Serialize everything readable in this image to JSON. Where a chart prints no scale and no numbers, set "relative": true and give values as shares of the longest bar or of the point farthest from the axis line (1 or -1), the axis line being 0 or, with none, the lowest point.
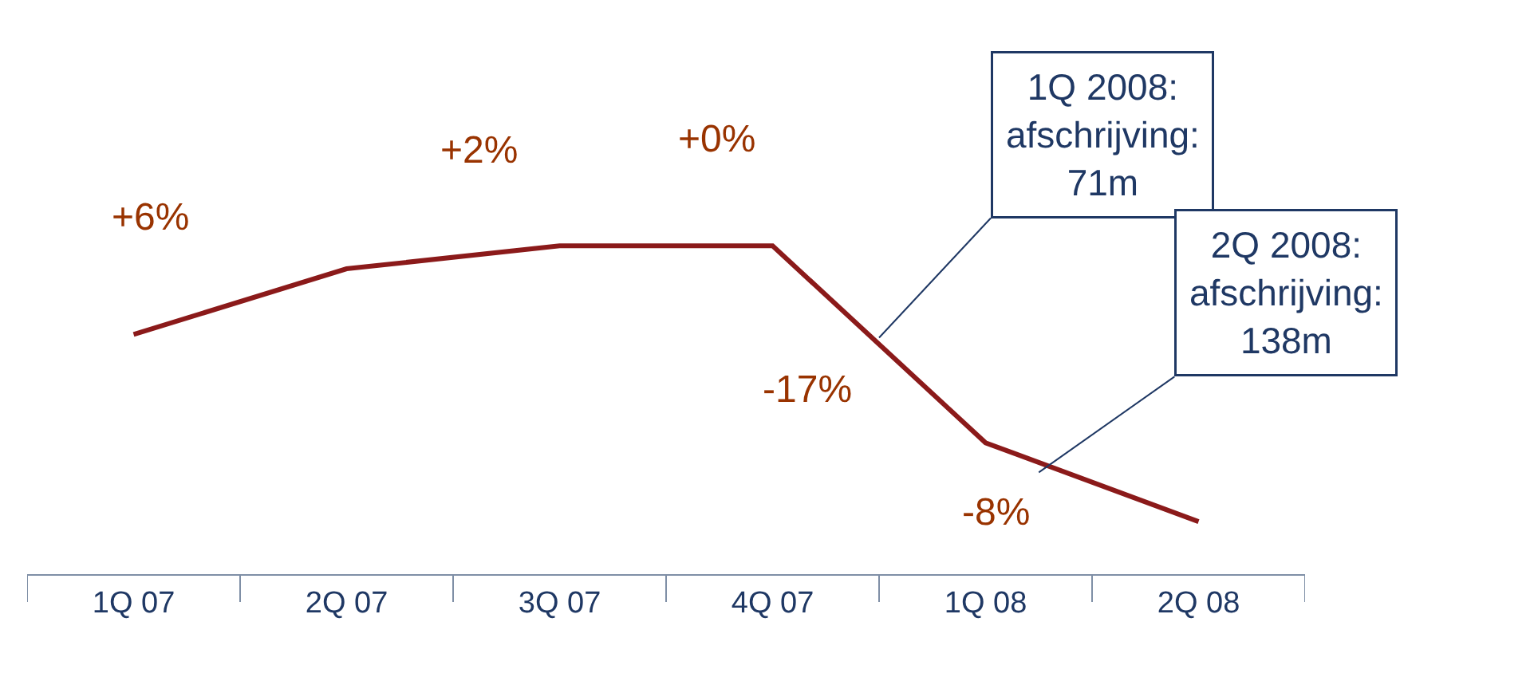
{
  "chart_data": {
    "type": "line",
    "relative": true,
    "categories": [
      "1Q 07",
      "2Q 07",
      "3Q 07",
      "4Q 07",
      "1Q 08",
      "2Q 08"
    ],
    "series": [
      {
        "color": "#8b1a1a",
        "values": [
          0.73,
          0.93,
          1,
          1,
          0.4,
          0.16
        ]
      }
    ],
    "annotations": [
      "+6%",
      "+2%",
      "+0%",
      "-17%",
      "-8%",
      "1Q 2008:\nafschrijving:\n71m",
      "2Q 2008:\nafschrijving:\n138m"
    ],
    "marker": "none",
    "line_style": "solid",
    "legend": false
  }
}
